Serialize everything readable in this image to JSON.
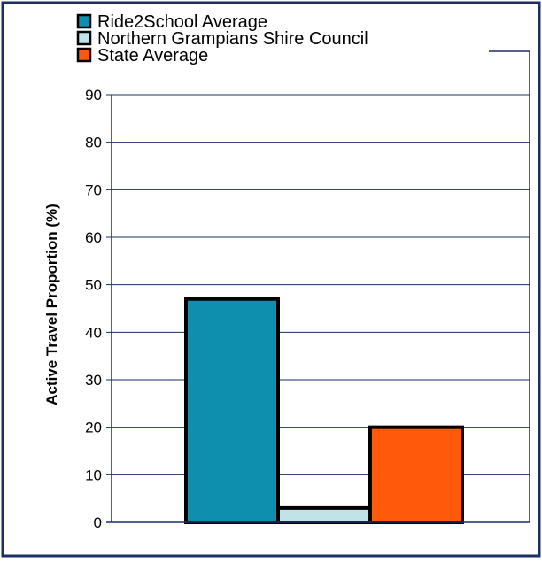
{
  "chart_data": {
    "type": "bar",
    "title": "",
    "xlabel": "",
    "ylabel": "Active Travel Proportion (%)",
    "ylim": [
      0,
      90
    ],
    "yticks": [
      0,
      10,
      20,
      30,
      40,
      50,
      60,
      70,
      80,
      90
    ],
    "grid": true,
    "legend_position": "top-left",
    "series": [
      {
        "name": "Ride2School Average",
        "values": [
          47
        ],
        "color": "#0f8fae"
      },
      {
        "name": "Northern Grampians Shire Council",
        "values": [
          3
        ],
        "color": "#bfe3e6"
      },
      {
        "name": "State Average",
        "values": [
          20
        ],
        "color": "#ff5a0a"
      }
    ]
  },
  "colors": {
    "frame": "#1a2f66",
    "gridline": "#1a2f66",
    "bar_outline": "#000000"
  }
}
